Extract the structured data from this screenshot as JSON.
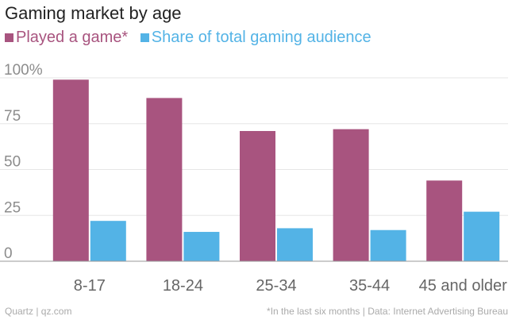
{
  "chart_data": {
    "type": "bar",
    "title": "Gaming market by age",
    "xlabel": "",
    "ylabel": "",
    "categories": [
      "8-17",
      "18-24",
      "25-34",
      "35-44",
      "45 and older"
    ],
    "series": [
      {
        "name": "Played a game*",
        "color": "#a8547f",
        "values": [
          99,
          89,
          71,
          72,
          44
        ]
      },
      {
        "name": "Share of total gaming audience",
        "color": "#53b3e6",
        "values": [
          22,
          16,
          18,
          17,
          27
        ]
      }
    ],
    "ylim": [
      0,
      100
    ],
    "yticks": [
      {
        "value": 0,
        "label": "0"
      },
      {
        "value": 25,
        "label": "25"
      },
      {
        "value": 50,
        "label": "50"
      },
      {
        "value": 75,
        "label": "75"
      },
      {
        "value": 100,
        "label": "100%"
      }
    ],
    "grid": true,
    "legend_position": "top-left"
  },
  "footer": {
    "source_left": "Quartz | qz.com",
    "source_right": "*In the last six months | Data: Internet Advertising Bureau"
  }
}
